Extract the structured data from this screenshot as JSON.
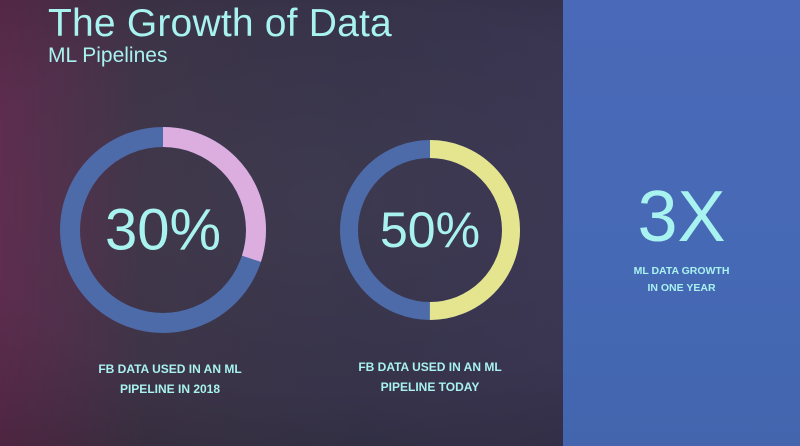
{
  "title": "The Growth of Data",
  "subtitle": "ML Pipelines",
  "colors": {
    "background": "#36334a",
    "text": "#a8f2ef",
    "donut_remainder": "#4d6ba8",
    "donut_2018": "#dcaee0",
    "donut_today": "#e6e58f",
    "panel": "#4a69b8"
  },
  "chart_data": [
    {
      "type": "pie",
      "style": "donut",
      "value": 30,
      "label": "30%",
      "caption_line1": "FB DATA USED IN AN ML",
      "caption_line2": "PIPELINE IN 2018",
      "highlight_color": "#dcaee0"
    },
    {
      "type": "pie",
      "style": "donut",
      "value": 50,
      "label": "50%",
      "caption_line1": "FB DATA USED IN AN ML",
      "caption_line2": "PIPELINE TODAY",
      "highlight_color": "#e6e58f"
    }
  ],
  "side_stat": {
    "value": "3X",
    "label_line1": "ML DATA GROWTH",
    "label_line2": "IN ONE YEAR"
  }
}
